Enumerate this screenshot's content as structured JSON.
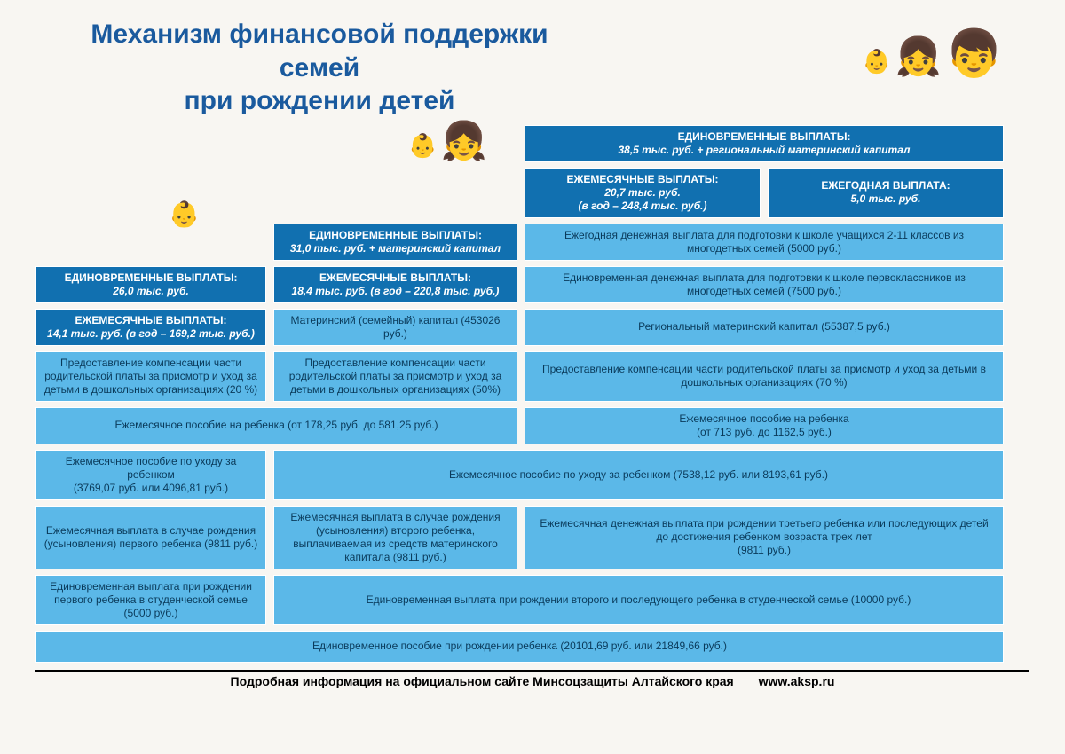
{
  "title_line1": "Механизм финансовой поддержки семей",
  "title_line2": "при рождении детей",
  "col3": {
    "onetime_hdr": "ЕДИНОВРЕМЕННЫЕ ВЫПЛАТЫ:",
    "onetime_val": "38,5 тыс. руб. + региональный материнский капитал",
    "monthly_hdr": "ЕЖЕМЕСЯЧНЫЕ ВЫПЛАТЫ:",
    "monthly_val": "20,7 тыс. руб.",
    "monthly_year": "(в год – 248,4 тыс. руб.)",
    "annual_hdr": "ЕЖЕГОДНАЯ ВЫПЛАТА:",
    "annual_val": "5,0 тыс. руб.",
    "r1": "Ежегодная денежная выплата для подготовки к школе учащихся 2-11 классов из многодетных семей (5000 руб.)",
    "r2": "Единовременная денежная выплата для подготовки к школе первоклассников из многодетных семей (7500 руб.)",
    "r3": "Региональный материнский капитал (55387,5 руб.)",
    "r4": "Предоставление компенсации части родительской платы за присмотр и уход за детьми в дошкольных организациях (70 %)",
    "r5": "Ежемесячное пособие на ребенка\n(от 713 руб. до 1162,5 руб.)",
    "r7": "Ежемесячная денежная выплата при рождении третьего ребенка или последующих детей до достижения ребенком возраста трех лет\n(9811 руб.)"
  },
  "col2": {
    "onetime_hdr": "ЕДИНОВРЕМЕННЫЕ ВЫПЛАТЫ:",
    "onetime_val": "31,0 тыс. руб. + материнский капитал",
    "monthly_hdr": "ЕЖЕМЕСЯЧНЫЕ ВЫПЛАТЫ:",
    "monthly_val": "18,4 тыс. руб. (в год – 220,8 тыс. руб.)",
    "r3": "Материнский (семейный) капитал (453026 руб.)",
    "r4": "Предоставление компенсации части родительской платы за присмотр и уход за детьми в дошкольных организациях (50%)",
    "r7": "Ежемесячная выплата в случае рождения (усыновления) второго ребенка, выплачиваемая из средств материнского капитала (9811 руб.)"
  },
  "col1": {
    "onetime_hdr": "ЕДИНОВРЕМЕННЫЕ ВЫПЛАТЫ:",
    "onetime_val": "26,0 тыс. руб.",
    "monthly_hdr": "ЕЖЕМЕСЯЧНЫЕ ВЫПЛАТЫ:",
    "monthly_val": "14,1 тыс. руб. (в год – 169,2 тыс. руб.)",
    "r4": "Предоставление компенсации части родительской платы за присмотр и уход за детьми в дошкольных организациях (20 %)",
    "r6": "Ежемесячное пособие по уходу за ребенком\n(3769,07 руб. или 4096,81 руб.)",
    "r7": "Ежемесячная выплата в случае рождения (усыновления) первого ребенка (9811 руб.)",
    "r8": "Единовременная выплата при рождении первого ребенка в студенческой семье (5000 руб.)"
  },
  "span": {
    "r5_12": "Ежемесячное пособие на ребенка (от 178,25 руб. до 581,25 руб.)",
    "r6_23": "Ежемесячное пособие по уходу за ребенком (7538,12 руб. или 8193,61 руб.)",
    "r8_23": "Единовременная выплата при рождении второго и последующего ребенка в студенческой семье (10000 руб.)",
    "r9_all": "Единовременное пособие при рождении ребенка (20101,69 руб. или 21849,66 руб.)"
  },
  "footer": {
    "text": "Подробная информация на официальном сайте Минсоцзащиты Алтайского края",
    "url": "www.aksp.ru"
  },
  "colors": {
    "dark": "#1170b0",
    "light": "#5bb8e8",
    "title": "#1a5a9e",
    "page_bg": "#f8f6f2"
  }
}
